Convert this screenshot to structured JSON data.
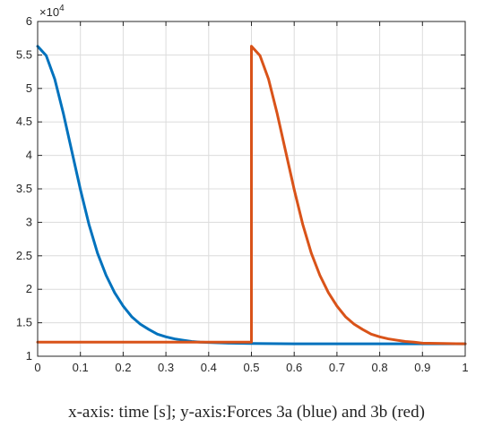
{
  "caption": "x-axis: time [s]; y-axis:Forces 3a (blue) and 3b (red)",
  "chart_data": {
    "type": "line",
    "title": "",
    "xlabel": "",
    "ylabel": "",
    "xlim": [
      0,
      1
    ],
    "ylim": [
      1,
      6
    ],
    "y_multiplier_label": "×10",
    "y_multiplier_exponent": "4",
    "grid": true,
    "x_ticks": [
      "0",
      "0.1",
      "0.2",
      "0.3",
      "0.4",
      "0.5",
      "0.6",
      "0.7",
      "0.8",
      "0.9",
      "1"
    ],
    "y_ticks": [
      "1",
      "1.5",
      "2",
      "2.5",
      "3",
      "3.5",
      "4",
      "4.5",
      "5",
      "5.5",
      "6"
    ],
    "series": [
      {
        "color": "#0072BD",
        "x": [
          0,
          0.02,
          0.04,
          0.06,
          0.08,
          0.1,
          0.12,
          0.14,
          0.16,
          0.18,
          0.2,
          0.22,
          0.24,
          0.26,
          0.28,
          0.3,
          0.32,
          0.34,
          0.36,
          0.38,
          0.4,
          0.45,
          0.5,
          0.6,
          0.7,
          0.8,
          0.9,
          1.0
        ],
        "y": [
          5.63,
          5.49,
          5.14,
          4.63,
          4.06,
          3.49,
          2.97,
          2.54,
          2.21,
          1.95,
          1.75,
          1.59,
          1.48,
          1.4,
          1.33,
          1.29,
          1.26,
          1.24,
          1.22,
          1.21,
          1.205,
          1.195,
          1.19,
          1.185,
          1.185,
          1.185,
          1.185,
          1.185
        ]
      },
      {
        "color": "#D95319",
        "x": [
          0,
          0.1,
          0.2,
          0.3,
          0.4,
          0.5,
          0.5,
          0.52,
          0.54,
          0.56,
          0.58,
          0.6,
          0.62,
          0.64,
          0.66,
          0.68,
          0.7,
          0.72,
          0.74,
          0.76,
          0.78,
          0.8,
          0.82,
          0.84,
          0.86,
          0.88,
          0.9,
          0.95,
          1.0
        ],
        "y": [
          1.21,
          1.21,
          1.21,
          1.21,
          1.21,
          1.21,
          5.63,
          5.49,
          5.14,
          4.63,
          4.06,
          3.49,
          2.97,
          2.54,
          2.21,
          1.95,
          1.75,
          1.59,
          1.48,
          1.4,
          1.33,
          1.29,
          1.26,
          1.24,
          1.22,
          1.21,
          1.195,
          1.19,
          1.185
        ]
      }
    ]
  }
}
